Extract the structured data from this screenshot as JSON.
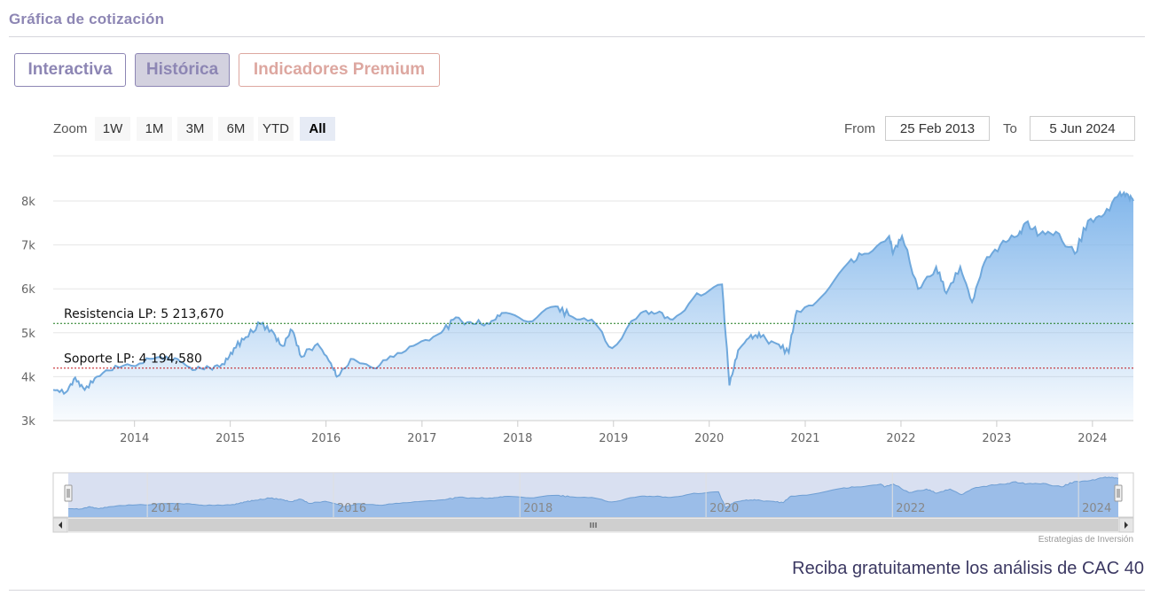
{
  "header": {
    "title": "Gráfica de cotización"
  },
  "tabs": [
    {
      "label": "Interactiva"
    },
    {
      "label": "Histórica"
    },
    {
      "label": "Indicadores Premium"
    }
  ],
  "range_selector": {
    "zoom_label": "Zoom",
    "buttons": [
      "1W",
      "1M",
      "3M",
      "6M",
      "YTD",
      "All"
    ],
    "active": "All",
    "from_label": "From",
    "from_value": "25 Feb 2013",
    "to_label": "To",
    "to_value": "5 Jun 2024"
  },
  "chart_data": {
    "type": "area",
    "x_range": [
      "2013-02-25",
      "2024-06-05"
    ],
    "ylim": [
      3000,
      8300
    ],
    "y_ticks": [
      3000,
      4000,
      5000,
      6000,
      7000,
      8000
    ],
    "y_tick_labels": [
      "3k",
      "4k",
      "5k",
      "6k",
      "7k",
      "8k"
    ],
    "x_tick_labels": [
      "2014",
      "2015",
      "2016",
      "2017",
      "2018",
      "2019",
      "2020",
      "2021",
      "2022",
      "2023",
      "2024"
    ],
    "grid": true,
    "series": [
      {
        "x": [
          "2013-02-25",
          "2013-04-15",
          "2013-05-20",
          "2013-06-25",
          "2013-08-10",
          "2013-10-20",
          "2014-01-20",
          "2014-04-10",
          "2014-06-15",
          "2014-08-10",
          "2014-10-15",
          "2014-12-10",
          "2015-01-15",
          "2015-03-01",
          "2015-04-27",
          "2015-06-15",
          "2015-07-20",
          "2015-08-25",
          "2015-09-29",
          "2015-11-30",
          "2016-01-20",
          "2016-02-11",
          "2016-04-15",
          "2016-06-27",
          "2016-09-15",
          "2016-12-15",
          "2017-03-15",
          "2017-05-10",
          "2017-07-15",
          "2017-09-15",
          "2017-11-01",
          "2018-02-09",
          "2018-05-25",
          "2018-07-15",
          "2018-10-10",
          "2018-12-27",
          "2019-04-15",
          "2019-06-15",
          "2019-08-15",
          "2019-11-15",
          "2020-02-19",
          "2020-03-18",
          "2020-04-20",
          "2020-06-08",
          "2020-07-15",
          "2020-09-15",
          "2020-10-30",
          "2020-11-30",
          "2021-03-01",
          "2021-06-15",
          "2021-08-15",
          "2021-11-17",
          "2021-12-01",
          "2022-01-05",
          "2022-03-07",
          "2022-05-15",
          "2022-06-23",
          "2022-08-15",
          "2022-09-29",
          "2022-11-15",
          "2023-01-15",
          "2023-03-20",
          "2023-04-20",
          "2023-06-15",
          "2023-08-15",
          "2023-10-26",
          "2023-12-15",
          "2024-02-15",
          "2024-04-15",
          "2024-05-15",
          "2024-06-05"
        ],
        "values": [
          3700,
          3650,
          3980,
          3700,
          4000,
          4250,
          4300,
          4450,
          4400,
          4150,
          4200,
          4280,
          4650,
          4900,
          5200,
          5000,
          4700,
          5050,
          4450,
          4750,
          4300,
          4000,
          4400,
          4200,
          4450,
          4750,
          5000,
          5350,
          5200,
          5200,
          5450,
          5250,
          5600,
          5400,
          5300,
          4650,
          5450,
          5450,
          5300,
          5900,
          6100,
          3800,
          4600,
          4950,
          4900,
          4750,
          4550,
          5500,
          5800,
          6600,
          6800,
          7200,
          6800,
          7200,
          6000,
          6500,
          5900,
          6500,
          5700,
          6600,
          7000,
          7200,
          7500,
          7250,
          7300,
          6800,
          7550,
          7700,
          8200,
          8150,
          8000
        ]
      }
    ],
    "annotations": [
      {
        "label": "Resistencia LP: 5 213,670",
        "value": 5213.67,
        "color": "#1a7a1a"
      },
      {
        "label": "Soporte LP: 4 194,580",
        "value": 4194.58,
        "color": "#c0141a"
      }
    ],
    "navigator": {
      "x_tick_labels": [
        "2014",
        "2016",
        "2018",
        "2020",
        "2022",
        "2024"
      ]
    }
  },
  "credits": "Estrategias de Inversión",
  "cta": "Reciba gratuitamente los análisis de CAC 40"
}
